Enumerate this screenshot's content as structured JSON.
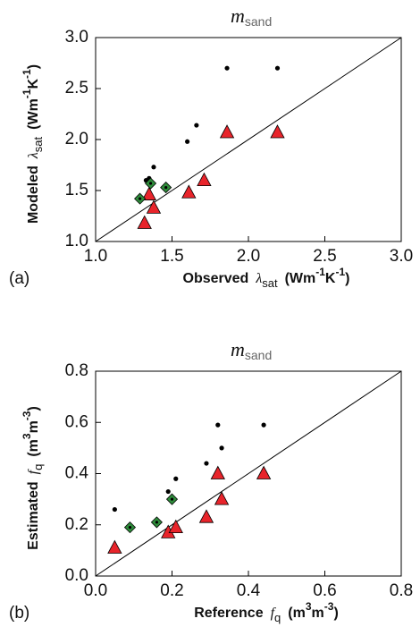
{
  "chart_data": [
    {
      "type": "scatter",
      "title": "m",
      "title_subscript": "sand",
      "panel_label": "(a)",
      "xlabel": [
        "Observed",
        "λ",
        "sat",
        "(Wm",
        "-1",
        "K",
        "-1",
        ")"
      ],
      "ylabel": [
        "Modeled",
        "λ",
        "sat",
        "(Wm",
        "-1",
        "K",
        "-1",
        ")"
      ],
      "xlim": [
        1.0,
        3.0
      ],
      "ylim": [
        1.0,
        3.0
      ],
      "xticks": [
        {
          "value": 1,
          "label": "1.0"
        },
        1.5,
        {
          "value": 2,
          "label": "2.0"
        },
        2.5,
        {
          "value": 3,
          "label": "3.0"
        }
      ],
      "yticks": [
        {
          "value": 1,
          "label": "1.0"
        },
        1.5,
        {
          "value": 2,
          "label": "2.0"
        },
        2.5,
        {
          "value": 3,
          "label": "3.0"
        }
      ],
      "series": [
        {
          "marker": "dot",
          "color": "#000000",
          "x": [
            1.86,
            2.19,
            1.66,
            1.6,
            1.38,
            1.35,
            1.33
          ],
          "values": [
            2.7,
            2.7,
            2.14,
            1.98,
            1.73,
            1.62,
            1.6
          ]
        },
        {
          "marker": "triangle",
          "color": "#e8242b",
          "x": [
            1.86,
            2.19,
            1.71,
            1.61,
            1.35,
            1.38,
            1.32
          ],
          "values": [
            2.07,
            2.07,
            1.6,
            1.48,
            1.46,
            1.33,
            1.18
          ]
        },
        {
          "marker": "diamond",
          "color": "#2e8b3a",
          "x": [
            1.29,
            1.36,
            1.46
          ],
          "values": [
            1.42,
            1.57,
            1.53
          ]
        }
      ]
    },
    {
      "type": "scatter",
      "title": "m",
      "title_subscript": "sand",
      "panel_label": "(b)",
      "xlabel": [
        "Reference",
        "f",
        "q",
        "(m",
        "3",
        "m",
        "-3",
        ")"
      ],
      "ylabel": [
        "Estimated",
        "f",
        "q",
        "(m",
        "3",
        "m",
        "-3",
        ")"
      ],
      "xlim": [
        0.0,
        0.8
      ],
      "ylim": [
        0.0,
        0.8
      ],
      "xticks": [
        {
          "value": 0,
          "label": "0.0"
        },
        0.2,
        0.4,
        0.6,
        0.8
      ],
      "yticks": [
        {
          "value": 0,
          "label": "0.0"
        },
        0.2,
        0.4,
        0.6,
        0.8
      ],
      "series": [
        {
          "marker": "dot",
          "color": "#000000",
          "x": [
            0.05,
            0.19,
            0.21,
            0.29,
            0.32,
            0.33,
            0.44
          ],
          "values": [
            0.26,
            0.33,
            0.38,
            0.44,
            0.59,
            0.5,
            0.59
          ]
        },
        {
          "marker": "triangle",
          "color": "#e8242b",
          "x": [
            0.05,
            0.19,
            0.21,
            0.29,
            0.32,
            0.33,
            0.44
          ],
          "values": [
            0.11,
            0.17,
            0.19,
            0.23,
            0.4,
            0.3,
            0.4
          ]
        },
        {
          "marker": "diamond",
          "color": "#2e8b3a",
          "x": [
            0.09,
            0.16,
            0.2
          ],
          "values": [
            0.19,
            0.21,
            0.3
          ]
        }
      ]
    }
  ]
}
